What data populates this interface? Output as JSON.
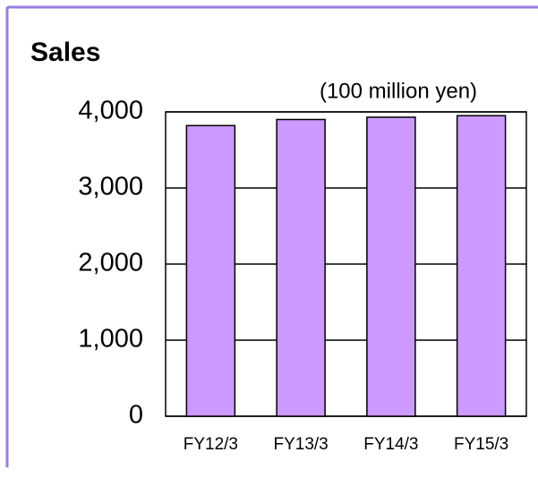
{
  "chart_data": {
    "type": "bar",
    "title": "Sales",
    "subtitle": "(100 million yen)",
    "categories": [
      "FY12/3",
      "FY13/3",
      "FY14/3",
      "FY15/3"
    ],
    "values": [
      3820,
      3900,
      3930,
      3950
    ],
    "color": "#cc99ff",
    "ylim": [
      0,
      4000
    ],
    "yticks": [
      0,
      {
        "value": 1000,
        "label": "1,000"
      },
      {
        "value": 2000,
        "label": "2,000"
      },
      {
        "value": 3000,
        "label": "3,000"
      },
      {
        "value": 4000,
        "label": "4,000"
      }
    ],
    "grid": true
  }
}
